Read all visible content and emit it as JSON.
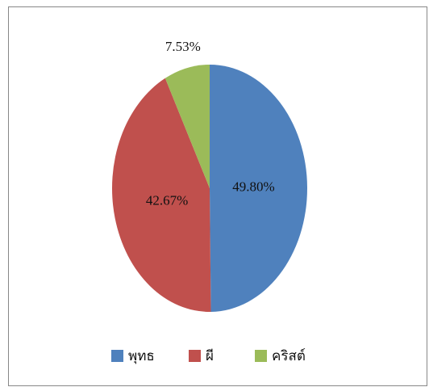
{
  "chart_data": {
    "type": "pie",
    "categories": [
      "พุทธ",
      "ผี",
      "คริสต์"
    ],
    "values": [
      49.8,
      42.67,
      7.53
    ],
    "value_labels": [
      "49.80%",
      "42.67%",
      "7.53%"
    ],
    "colors": [
      "#4f81bd",
      "#c0504d",
      "#9bbb59"
    ],
    "legend": "bottom"
  }
}
